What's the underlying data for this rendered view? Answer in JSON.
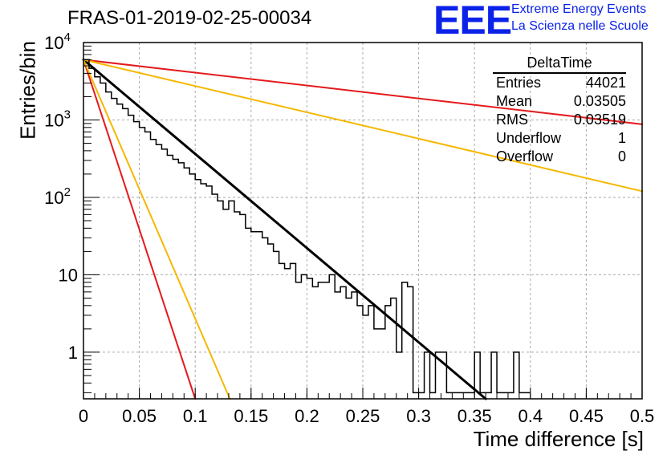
{
  "header": {
    "title": "FRAS-01-2019-02-25-00034",
    "logo_mark": "EEE",
    "logo_line1": "Extreme Energy Events",
    "logo_line2": "La Scienza nelle Scuole"
  },
  "stats_box": {
    "name": "DeltaTime",
    "rows": [
      {
        "label": "Entries",
        "value": "44021"
      },
      {
        "label": "Mean",
        "value": "0.03505"
      },
      {
        "label": "RMS",
        "value": "0.03519"
      },
      {
        "label": "Underflow",
        "value": "1"
      },
      {
        "label": "Overflow",
        "value": "0"
      }
    ]
  },
  "colors": {
    "histogram": "#000000",
    "fit": "#000000",
    "red": "#e41a1c",
    "orange": "#f5b800",
    "grid": "#aaaaaa",
    "brand": "#0b22e8"
  },
  "chart_data": {
    "type": "line",
    "xlabel": "Time difference [s]",
    "ylabel": "Entries/bin",
    "xlim": [
      0,
      0.5
    ],
    "ylim": [
      0.25,
      10000
    ],
    "yscale": "log",
    "grid": true,
    "x_ticks": [
      "0",
      "0.05",
      "0.1",
      "0.15",
      "0.2",
      "0.25",
      "0.3",
      "0.35",
      "0.4",
      "0.45",
      "0.5"
    ],
    "y_ticks": [
      {
        "value": 1,
        "label": "1"
      },
      {
        "value": 10,
        "label": "10"
      },
      {
        "value": 100,
        "label": "10^2"
      },
      {
        "value": 1000,
        "label": "10^3"
      },
      {
        "value": 10000,
        "label": "10^4"
      }
    ],
    "histogram": {
      "bin_width": 0.005,
      "x_start": 0,
      "counts": [
        6000,
        4650,
        3600,
        3000,
        2300,
        1900,
        1600,
        1400,
        1150,
        950,
        800,
        700,
        560,
        480,
        420,
        350,
        310,
        280,
        240,
        200,
        170,
        150,
        140,
        110,
        90,
        70,
        90,
        65,
        60,
        40,
        36,
        36,
        30,
        25,
        20,
        14,
        12,
        14,
        8,
        10,
        9,
        7,
        8,
        8,
        10,
        6,
        7,
        5,
        6,
        4,
        3,
        4,
        2,
        2,
        4,
        5,
        1,
        8,
        7,
        0.3,
        0.3,
        1,
        0.3,
        1,
        1,
        0.3,
        0.3,
        0.3,
        0.3,
        0.3,
        1,
        0.3,
        0.3,
        1,
        0.3,
        0.3,
        0.3,
        1,
        0.3,
        0.3
      ]
    },
    "curves": [
      {
        "color_key": "fit",
        "x": [
          0,
          0.36
        ],
        "y": [
          6000,
          0.25
        ]
      },
      {
        "color_key": "red",
        "x": [
          0,
          0.5
        ],
        "y": [
          6000,
          880
        ]
      },
      {
        "color_key": "red",
        "x": [
          0,
          0.1
        ],
        "y": [
          6000,
          0.25
        ]
      },
      {
        "color_key": "orange",
        "x": [
          0,
          0.5
        ],
        "y": [
          6000,
          120
        ]
      },
      {
        "color_key": "orange",
        "x": [
          0,
          0.131
        ],
        "y": [
          6000,
          0.25
        ]
      }
    ]
  }
}
